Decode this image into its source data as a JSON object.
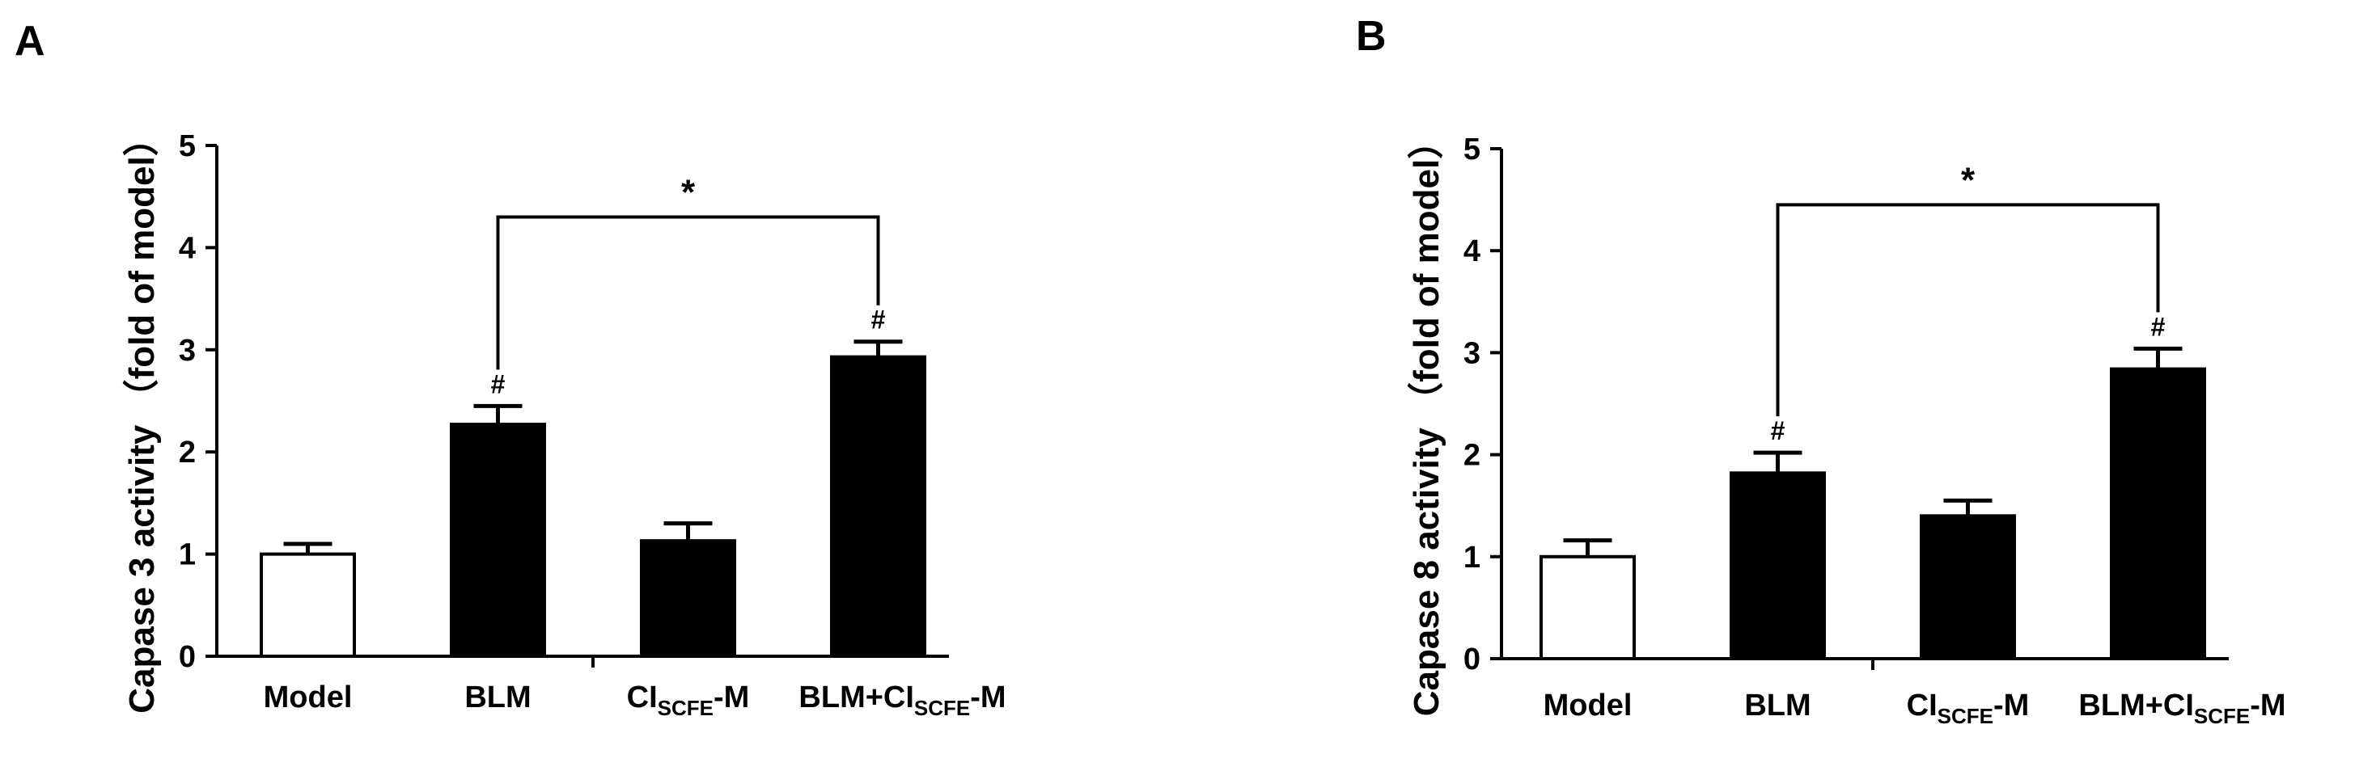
{
  "chart_data": [
    {
      "type": "bar",
      "panel": "A",
      "ylabel": "Capase 3 activity （fold of model）",
      "ylim": [
        0,
        5
      ],
      "yticks": [
        0,
        1,
        2,
        3,
        4,
        5
      ],
      "categories": [
        {
          "main": "Model",
          "sub": "",
          "tail": ""
        },
        {
          "main": "BLM",
          "sub": "",
          "tail": ""
        },
        {
          "main": "CI",
          "sub": "SCFE",
          "tail": "-M"
        },
        {
          "main": "BLM+CI",
          "sub": "SCFE",
          "tail": "-M"
        }
      ],
      "values": [
        1.0,
        2.27,
        1.13,
        2.93
      ],
      "errors": [
        0.1,
        0.18,
        0.17,
        0.15
      ],
      "fill": [
        "white",
        "black",
        "black",
        "black"
      ],
      "annotations": [
        "",
        "#",
        "",
        "#"
      ],
      "significance": {
        "from": 1,
        "to": 3,
        "y": 4.3,
        "label": "*"
      },
      "colors": {
        "bar": "#000000",
        "open_bar": "#ffffff"
      }
    },
    {
      "type": "bar",
      "panel": "B",
      "ylabel": "Capase 8 activity （fold of model）",
      "ylim": [
        0,
        5
      ],
      "yticks": [
        0,
        1,
        2,
        3,
        4,
        5
      ],
      "categories": [
        {
          "main": "Model",
          "sub": "",
          "tail": ""
        },
        {
          "main": "BLM",
          "sub": "",
          "tail": ""
        },
        {
          "main": "CI",
          "sub": "SCFE",
          "tail": "-M"
        },
        {
          "main": "BLM+CI",
          "sub": "SCFE",
          "tail": "-M"
        }
      ],
      "values": [
        1.0,
        1.82,
        1.4,
        2.84
      ],
      "errors": [
        0.16,
        0.2,
        0.15,
        0.2
      ],
      "fill": [
        "white",
        "black",
        "black",
        "black"
      ],
      "annotations": [
        "",
        "#",
        "",
        "#"
      ],
      "significance": {
        "from": 1,
        "to": 3,
        "y": 4.45,
        "label": "*"
      },
      "colors": {
        "bar": "#000000",
        "open_bar": "#ffffff"
      }
    }
  ]
}
